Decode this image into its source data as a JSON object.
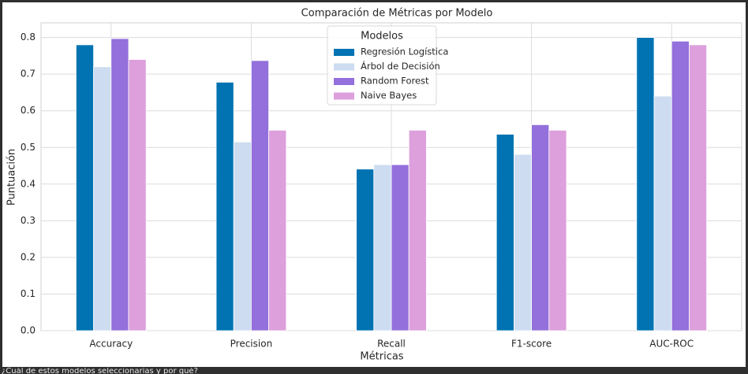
{
  "chart_data": {
    "type": "bar",
    "title": "Comparación de Métricas por Modelo",
    "xlabel": "Métricas",
    "ylabel": "Puntuación",
    "legend_title": "Modelos",
    "legend": "upper center",
    "grid": true,
    "categories": [
      "Accuracy",
      "Precision",
      "Recall",
      "F1-score",
      "AUC-ROC"
    ],
    "series": [
      {
        "name": "Regresión Logística",
        "color": "#0173b2",
        "values": [
          0.78,
          0.678,
          0.441,
          0.536,
          0.8
        ]
      },
      {
        "name": "Árbol de Decisión",
        "color": "#cddcf1",
        "values": [
          0.72,
          0.515,
          0.453,
          0.481,
          0.64
        ]
      },
      {
        "name": "Random Forest",
        "color": "#9370db",
        "values": [
          0.797,
          0.737,
          0.453,
          0.562,
          0.79
        ]
      },
      {
        "name": "Naive Bayes",
        "color": "#dda0dd",
        "values": [
          0.74,
          0.547,
          0.547,
          0.547,
          0.78
        ]
      }
    ],
    "ylim": [
      0,
      0.84
    ],
    "yticks": [
      {
        "value": 0,
        "label": "0.0"
      },
      0.1,
      0.2,
      0.3,
      0.4,
      0.5,
      0.6,
      0.7,
      0.8
    ]
  },
  "caption": "¿Cuál de estos modelos seleccionarías y por qué?"
}
